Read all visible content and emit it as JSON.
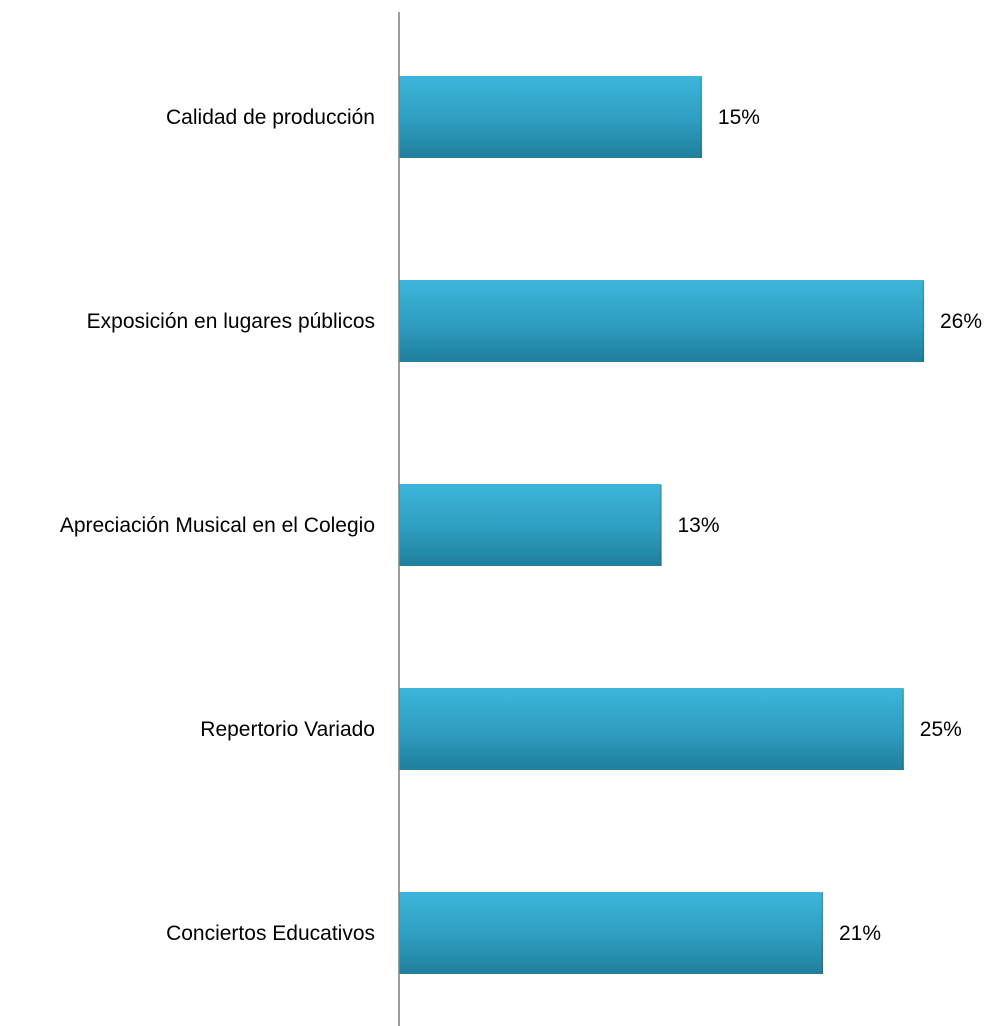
{
  "chart_data": {
    "type": "bar",
    "orientation": "horizontal",
    "categories": [
      "Calidad de producción",
      "Exposición en lugares públicos",
      "Apreciación Musical en el Colegio",
      "Repertorio Variado",
      "Conciertos Educativos"
    ],
    "values": [
      15,
      26,
      13,
      25,
      21
    ],
    "value_labels": [
      "15%",
      "26%",
      "13%",
      "25%",
      "21%"
    ],
    "unit": "%",
    "xlim": [
      0,
      26
    ],
    "grid": false,
    "legend": "none",
    "colors": {
      "bar_top": "#3bb6da",
      "bar_bottom": "#1f7f9c",
      "axis": "#7f7f7f"
    }
  }
}
